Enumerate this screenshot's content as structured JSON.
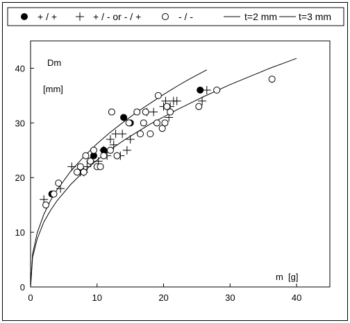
{
  "chart_data": {
    "type": "scatter",
    "title": "",
    "xlabel": "m  [g]",
    "ylabel": "Dm",
    "ylabel_unit": "[mm]",
    "xlim": [
      0,
      45
    ],
    "ylim": [
      0,
      45
    ],
    "xticks": [
      0,
      10,
      20,
      30,
      40
    ],
    "yticks": [
      0,
      10,
      20,
      30,
      40
    ],
    "grid": false,
    "legend_position": "top",
    "series": [
      {
        "name": "+ / +",
        "marker": "filled-circle",
        "points": [
          [
            3.2,
            17
          ],
          [
            9.5,
            24
          ],
          [
            11,
            25
          ],
          [
            14,
            31
          ],
          [
            15,
            30
          ],
          [
            25.5,
            36
          ]
        ]
      },
      {
        "name": "+ / - or - / +",
        "marker": "plus",
        "points": [
          [
            2,
            16
          ],
          [
            4.5,
            18
          ],
          [
            6.2,
            22
          ],
          [
            7.5,
            21
          ],
          [
            8,
            21
          ],
          [
            8.5,
            22
          ],
          [
            9,
            23
          ],
          [
            10.2,
            23
          ],
          [
            11,
            25
          ],
          [
            11.5,
            24
          ],
          [
            12,
            27
          ],
          [
            12.5,
            26
          ],
          [
            12.8,
            28
          ],
          [
            13.5,
            24
          ],
          [
            13.8,
            28
          ],
          [
            14.5,
            25
          ],
          [
            15,
            27
          ],
          [
            17.5,
            32
          ],
          [
            18.5,
            32
          ],
          [
            20,
            33
          ],
          [
            20.3,
            34
          ],
          [
            20.8,
            31
          ],
          [
            21,
            33
          ],
          [
            21.5,
            34
          ],
          [
            22,
            34
          ],
          [
            25.8,
            34
          ],
          [
            26.5,
            36
          ]
        ]
      },
      {
        "name": "- / -",
        "marker": "open-circle",
        "points": [
          [
            2.3,
            15
          ],
          [
            3.5,
            17
          ],
          [
            4.2,
            19
          ],
          [
            7,
            21
          ],
          [
            7.5,
            22
          ],
          [
            8,
            21
          ],
          [
            8.3,
            24
          ],
          [
            9,
            23
          ],
          [
            9.5,
            25
          ],
          [
            10,
            22
          ],
          [
            10.5,
            22
          ],
          [
            11,
            24
          ],
          [
            12,
            25
          ],
          [
            12.2,
            32
          ],
          [
            13,
            24
          ],
          [
            14.8,
            30
          ],
          [
            16,
            32
          ],
          [
            16.5,
            28
          ],
          [
            17,
            30
          ],
          [
            17.3,
            32
          ],
          [
            18,
            28
          ],
          [
            19,
            30
          ],
          [
            19.2,
            35
          ],
          [
            19.8,
            29
          ],
          [
            20.2,
            30
          ],
          [
            20.5,
            33
          ],
          [
            21,
            32
          ],
          [
            25.3,
            33
          ],
          [
            28,
            36
          ],
          [
            36.3,
            38
          ]
        ]
      }
    ],
    "fit_curves": [
      {
        "name": "t=2 mm",
        "line": "solid",
        "x": [
          0,
          0.3,
          1,
          2,
          3,
          4,
          6,
          8,
          10,
          12,
          14,
          16,
          18,
          20,
          22,
          24,
          26.5
        ],
        "y": [
          0,
          6.0,
          9.9,
          13.3,
          15.8,
          17.8,
          21.1,
          23.8,
          26.2,
          28.3,
          30.2,
          32.0,
          33.6,
          35.2,
          36.7,
          38.1,
          39.7
        ]
      },
      {
        "name": "t=3 mm",
        "line": "solid",
        "x": [
          0,
          0.3,
          1,
          2,
          3,
          4,
          6,
          8,
          10,
          12,
          14,
          16,
          18,
          20,
          22,
          24,
          26,
          28,
          30,
          32,
          34,
          36,
          38,
          40
        ],
        "y": [
          0,
          5.4,
          8.8,
          11.9,
          14.0,
          15.8,
          18.7,
          21.1,
          23.2,
          25.1,
          26.8,
          28.3,
          29.8,
          31.1,
          32.4,
          33.6,
          34.8,
          35.9,
          37.0,
          38.0,
          39.0,
          40.0,
          40.9,
          41.8
        ]
      }
    ],
    "colors": {
      "axis": "#000000",
      "marker_stroke": "#000000",
      "filled_marker": "#000000",
      "open_marker_fill": "#ffffff",
      "curve": "#000000"
    }
  }
}
